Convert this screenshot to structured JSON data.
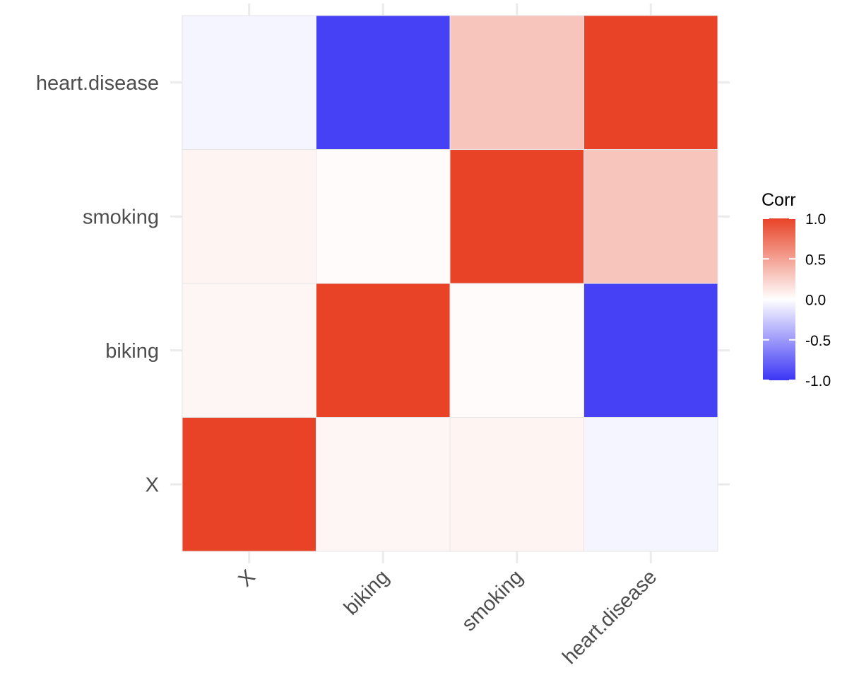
{
  "chart_data": {
    "type": "heatmap",
    "x_categories": [
      "X",
      "biking",
      "smoking",
      "heart.disease"
    ],
    "y_categories": [
      "X",
      "biking",
      "smoking",
      "heart.disease"
    ],
    "matrix": [
      [
        1.0,
        0.05,
        0.06,
        -0.05
      ],
      [
        0.05,
        1.0,
        0.02,
        -0.94
      ],
      [
        0.06,
        0.02,
        1.0,
        0.31
      ],
      [
        -0.05,
        -0.94,
        0.31,
        1.0
      ]
    ],
    "color_scale": {
      "low": "#3b35f5",
      "mid": "#ffffff",
      "high": "#e84327",
      "range": [
        -1,
        1
      ]
    },
    "legend": {
      "title": "Corr",
      "ticks": [
        1.0,
        0.5,
        0.0,
        -0.5,
        -1.0
      ],
      "tick_labels": [
        "1.0",
        "0.5",
        "0.0",
        "-0.5",
        "-1.0"
      ],
      "placement": "right"
    },
    "grid": true
  }
}
